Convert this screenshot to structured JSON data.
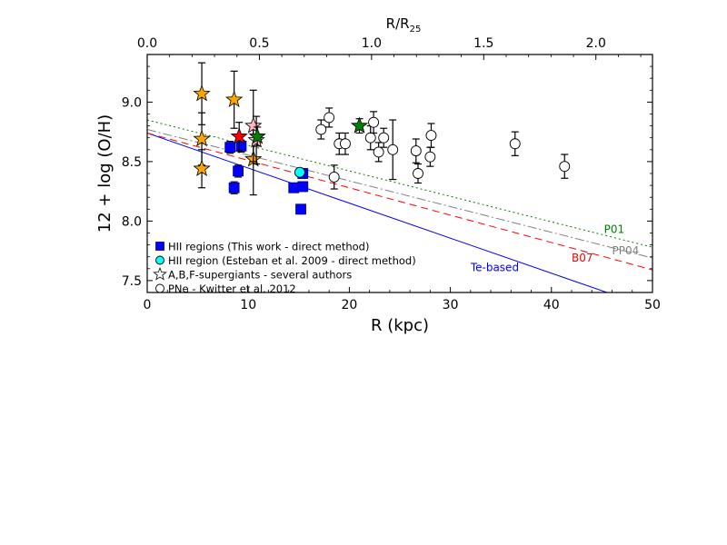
{
  "chart_data": {
    "type": "scatter",
    "xlabel": "R (kpc)",
    "ylabel": "12 + log (O/H)",
    "top_xlabel": "R/R",
    "top_xlabel_sub": "25",
    "xlim": [
      0,
      50
    ],
    "ylim": [
      7.4,
      9.4
    ],
    "x_ticks": [
      0,
      10,
      20,
      30,
      40,
      50
    ],
    "x_tick_labels": [
      "0",
      "10",
      "20",
      "30",
      "40",
      "50"
    ],
    "y_ticks": [
      7.5,
      8.0,
      8.5,
      9.0
    ],
    "y_tick_labels": [
      "7.5",
      "8.0",
      "8.5",
      "9.0"
    ],
    "top_ticks": [
      0.0,
      0.5,
      1.0,
      1.5,
      2.0
    ],
    "top_tick_labels": [
      "0.0",
      "0.5",
      "1.0",
      "1.5",
      "2.0"
    ],
    "top_kpc_per_unit": 22.2,
    "lines": [
      {
        "name": "Te-based",
        "color": "#0000ff",
        "dash": "",
        "x": [
          0,
          45.5
        ],
        "y": [
          8.74,
          7.4
        ],
        "label": "Te-based",
        "label_at": [
          32.0,
          7.58
        ]
      },
      {
        "name": "B07",
        "color": "#ff0000",
        "dash": "8,5",
        "x": [
          0,
          50
        ],
        "y": [
          8.74,
          7.59
        ],
        "label": "B07",
        "label_at": [
          42.0,
          7.66
        ]
      },
      {
        "name": "PP04",
        "color": "#808080",
        "dash": "10,3,2,3",
        "x": [
          0,
          50
        ],
        "y": [
          8.77,
          7.69
        ],
        "label": "PP04",
        "label_at": [
          46.0,
          7.72
        ]
      },
      {
        "name": "P01",
        "color": "#008000",
        "dash": "2,3",
        "x": [
          0,
          50
        ],
        "y": [
          8.85,
          7.78
        ],
        "label": "P01",
        "label_at": [
          45.2,
          7.9
        ]
      }
    ],
    "series": [
      {
        "name": "HII regions (This work - direct method)",
        "marker": "square",
        "color": "#0000ff",
        "points": [
          {
            "x": 8.2,
            "y": 8.62,
            "err": 0.05
          },
          {
            "x": 9.3,
            "y": 8.63,
            "err": 0.05
          },
          {
            "x": 8.6,
            "y": 8.28,
            "err": 0.05
          },
          {
            "x": 9.0,
            "y": 8.42,
            "err": 0.05
          },
          {
            "x": 14.5,
            "y": 8.28,
            "err": 0.04
          },
          {
            "x": 15.4,
            "y": 8.29,
            "err": 0.04
          },
          {
            "x": 15.4,
            "y": 8.4,
            "err": 0.04
          },
          {
            "x": 15.2,
            "y": 8.1,
            "err": 0.04
          }
        ]
      },
      {
        "name": "HII region (Esteban et al. 2009 - direct method)",
        "marker": "circle",
        "color": "#00ffff",
        "points": [
          {
            "x": 15.1,
            "y": 8.41,
            "err": 0.03
          }
        ]
      },
      {
        "name": "A,B,F-supergiants - several authors",
        "marker": "star",
        "color": "#ffffff",
        "points": [
          {
            "x": 5.4,
            "y": 9.07,
            "err": 0.26,
            "color": "#ffa500"
          },
          {
            "x": 5.4,
            "y": 8.69,
            "err": 0.22,
            "color": "#ffa500"
          },
          {
            "x": 5.4,
            "y": 8.44,
            "err": 0.16,
            "color": "#ffa500"
          },
          {
            "x": 8.6,
            "y": 9.02,
            "err": 0.24,
            "color": "#ffa500"
          },
          {
            "x": 9.1,
            "y": 8.71,
            "err": 0.12,
            "color": "#ff0000"
          },
          {
            "x": 10.5,
            "y": 8.52,
            "err": 0.3,
            "color": "#ffa500"
          },
          {
            "x": 10.5,
            "y": 8.8,
            "err": 0.3,
            "color": "#ffb6c1"
          },
          {
            "x": 10.8,
            "y": 8.68,
            "err": 0.2,
            "color": "#ffb6c1"
          },
          {
            "x": 10.9,
            "y": 8.71,
            "err": 0.08,
            "color": "#008000"
          },
          {
            "x": 21.0,
            "y": 8.8,
            "err": 0.06,
            "color": "#008000"
          }
        ]
      },
      {
        "name": "PNe - Kwitter et al. 2012",
        "marker": "circle",
        "color": "#ffffff",
        "points": [
          {
            "x": 17.2,
            "y": 8.77,
            "err": 0.08
          },
          {
            "x": 18.0,
            "y": 8.87,
            "err": 0.08
          },
          {
            "x": 18.5,
            "y": 8.37,
            "err": 0.1
          },
          {
            "x": 19.0,
            "y": 8.65,
            "err": 0.09
          },
          {
            "x": 19.6,
            "y": 8.65,
            "err": 0.09
          },
          {
            "x": 22.1,
            "y": 8.7,
            "err": 0.1
          },
          {
            "x": 22.4,
            "y": 8.83,
            "err": 0.09
          },
          {
            "x": 22.9,
            "y": 8.58,
            "err": 0.08
          },
          {
            "x": 23.4,
            "y": 8.7,
            "err": 0.08
          },
          {
            "x": 24.3,
            "y": 8.6,
            "err": 0.25
          },
          {
            "x": 26.6,
            "y": 8.59,
            "err": 0.1
          },
          {
            "x": 26.8,
            "y": 8.4,
            "err": 0.08
          },
          {
            "x": 28.0,
            "y": 8.54,
            "err": 0.08
          },
          {
            "x": 28.1,
            "y": 8.72,
            "err": 0.1
          },
          {
            "x": 36.4,
            "y": 8.65,
            "err": 0.1
          },
          {
            "x": 41.3,
            "y": 8.46,
            "err": 0.1
          }
        ]
      }
    ],
    "legend": {
      "placement": "bottom-left",
      "entries": [
        {
          "label": "HII regions (This work - direct method)",
          "marker": "square",
          "color": "#0000ff"
        },
        {
          "label": "HII region (Esteban et al. 2009 - direct method)",
          "marker": "circle",
          "color": "#00ffff"
        },
        {
          "label": "A,B,F-supergiants - several authors",
          "marker": "star",
          "color": "#ffffff"
        },
        {
          "label": "PNe - Kwitter et al. 2012",
          "marker": "circle",
          "color": "#ffffff"
        }
      ]
    }
  }
}
